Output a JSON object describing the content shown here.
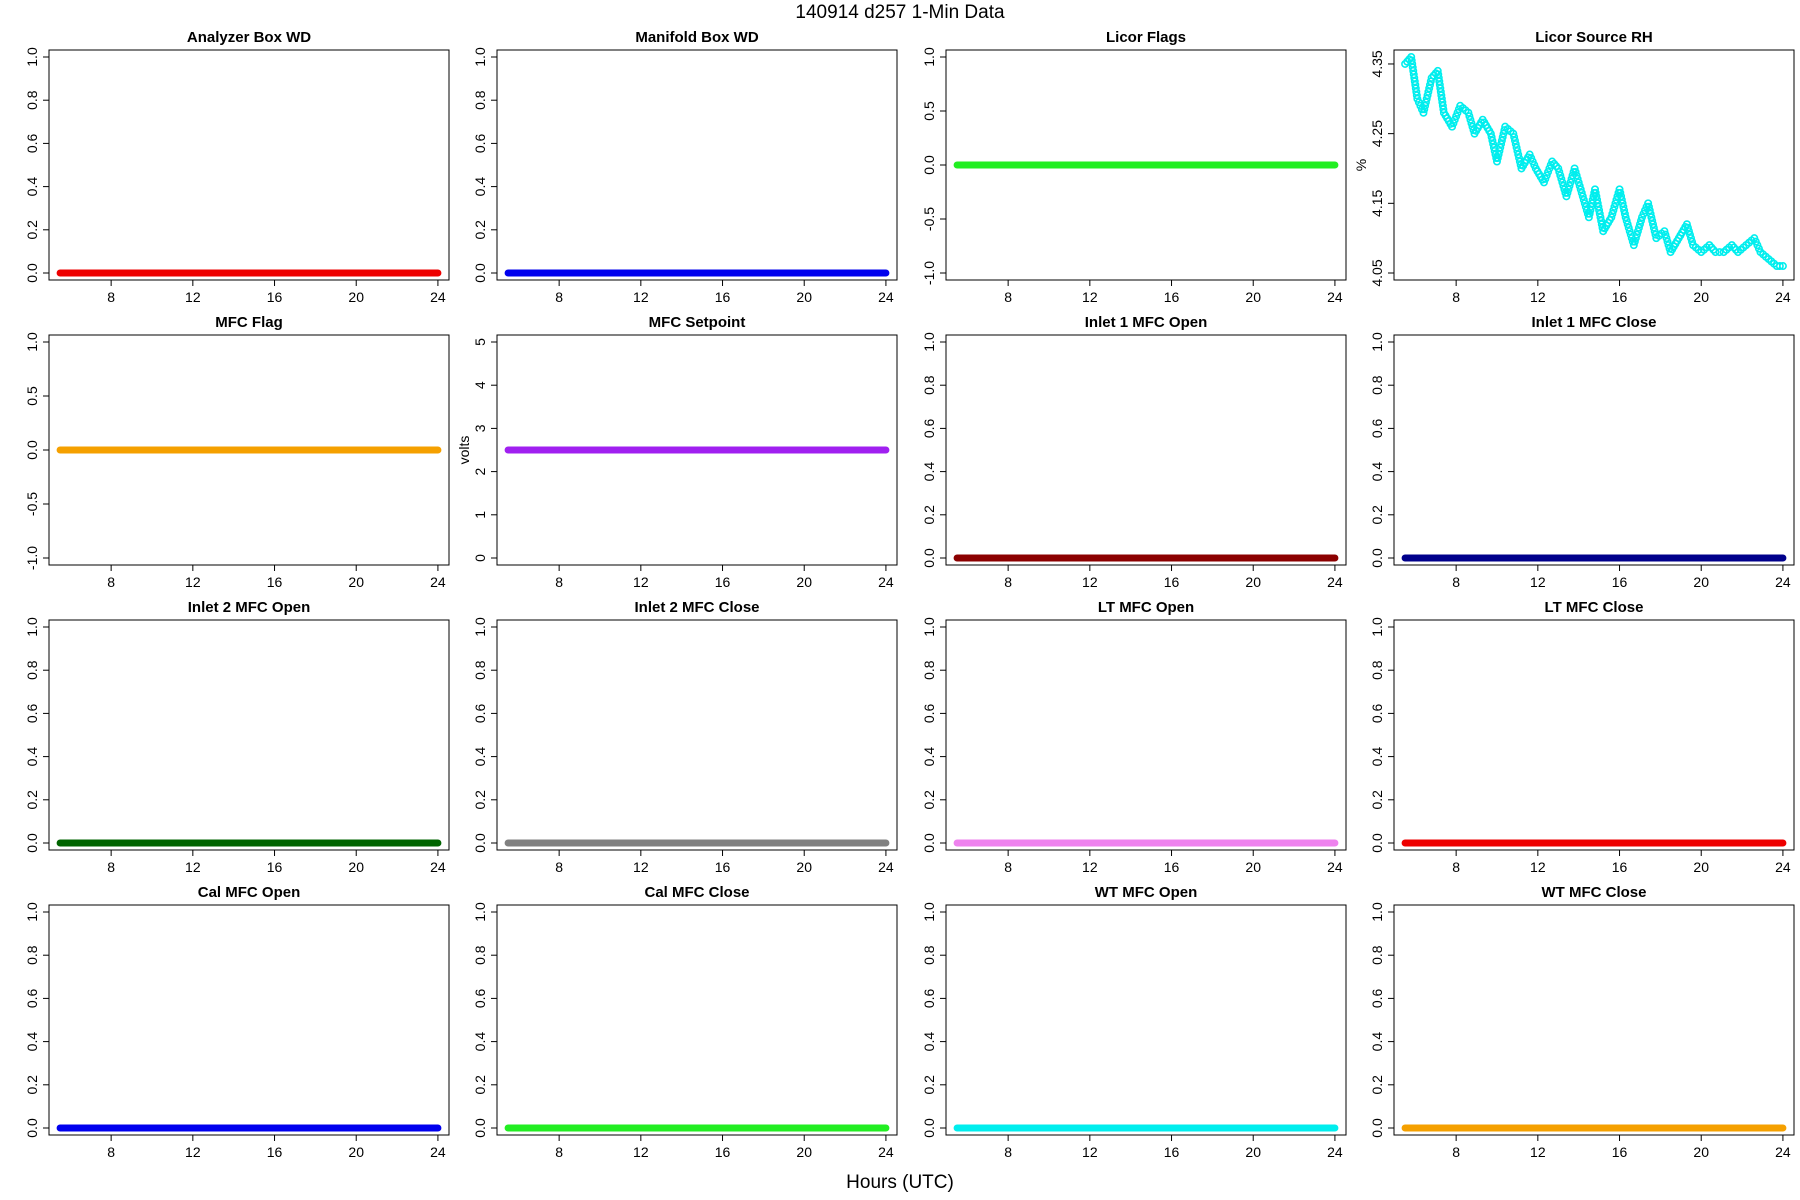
{
  "figure": {
    "title": "140914   d257   1-Min Data",
    "xlabel": "Hours (UTC)"
  },
  "chart_data": [
    {
      "type": "scatter",
      "title": "Analyzer Box WD",
      "ylabel": "",
      "color": "#ee0000",
      "xlim": [
        5.3,
        24.2
      ],
      "ylim": [
        0,
        1
      ],
      "xticks": [
        8,
        12,
        16,
        20,
        24
      ],
      "yticks": [
        "0.0",
        "0.2",
        "0.4",
        "0.6",
        "0.8",
        "1.0"
      ],
      "series": [
        {
          "x": [
            5.5,
            24
          ],
          "y": [
            0,
            0
          ]
        }
      ]
    },
    {
      "type": "scatter",
      "title": "Manifold Box WD",
      "ylabel": "",
      "color": "#0000ee",
      "xlim": [
        5.3,
        24.2
      ],
      "ylim": [
        0,
        1
      ],
      "xticks": [
        8,
        12,
        16,
        20,
        24
      ],
      "yticks": [
        "0.0",
        "0.2",
        "0.4",
        "0.6",
        "0.8",
        "1.0"
      ],
      "series": [
        {
          "x": [
            5.5,
            24
          ],
          "y": [
            0,
            0
          ]
        }
      ]
    },
    {
      "type": "scatter",
      "title": "Licor Flags",
      "ylabel": "",
      "color": "#22ee22",
      "xlim": [
        5.3,
        24.2
      ],
      "ylim": [
        -1,
        1
      ],
      "xticks": [
        8,
        12,
        16,
        20,
        24
      ],
      "yticks": [
        "-1.0",
        "-0.5",
        "0.0",
        "0.5",
        "1.0"
      ],
      "series": [
        {
          "x": [
            5.5,
            24
          ],
          "y": [
            0,
            0
          ]
        }
      ]
    },
    {
      "type": "scatter",
      "title": "Licor Source RH",
      "ylabel": "%",
      "color": "#00eeee",
      "marker": "open-circle",
      "xlim": [
        5.3,
        24.2
      ],
      "ylim": [
        4.05,
        4.36
      ],
      "xticks": [
        8,
        12,
        16,
        20,
        24
      ],
      "yticks": [
        "4.05",
        "4.15",
        "4.25",
        "4.35"
      ],
      "series": [
        {
          "x": [
            5.5,
            5.8,
            6.1,
            6.4,
            6.8,
            7.1,
            7.4,
            7.8,
            8.2,
            8.6,
            8.9,
            9.3,
            9.7,
            10.0,
            10.4,
            10.8,
            11.2,
            11.6,
            11.9,
            12.3,
            12.7,
            13.0,
            13.4,
            13.8,
            14.1,
            14.5,
            14.8,
            15.2,
            15.6,
            16.0,
            16.3,
            16.7,
            17.1,
            17.4,
            17.8,
            18.2,
            18.5,
            18.9,
            19.3,
            19.6,
            20.0,
            20.4,
            20.7,
            21.1,
            21.5,
            21.8,
            22.2,
            22.6,
            22.9,
            23.3,
            23.7,
            24.0
          ],
          "y": [
            4.35,
            4.36,
            4.3,
            4.28,
            4.33,
            4.34,
            4.28,
            4.26,
            4.29,
            4.28,
            4.25,
            4.27,
            4.25,
            4.21,
            4.26,
            4.25,
            4.2,
            4.22,
            4.2,
            4.18,
            4.21,
            4.2,
            4.16,
            4.2,
            4.17,
            4.13,
            4.17,
            4.11,
            4.13,
            4.17,
            4.13,
            4.09,
            4.13,
            4.15,
            4.1,
            4.11,
            4.08,
            4.1,
            4.12,
            4.09,
            4.08,
            4.09,
            4.08,
            4.08,
            4.09,
            4.08,
            4.09,
            4.1,
            4.08,
            4.07,
            4.06,
            4.06
          ]
        }
      ]
    },
    {
      "type": "scatter",
      "title": "MFC Flag",
      "ylabel": "",
      "color": "#f5a000",
      "xlim": [
        5.3,
        24.2
      ],
      "ylim": [
        -1,
        1
      ],
      "xticks": [
        8,
        12,
        16,
        20,
        24
      ],
      "yticks": [
        "-1.0",
        "-0.5",
        "0.0",
        "0.5",
        "1.0"
      ],
      "series": [
        {
          "x": [
            5.5,
            24
          ],
          "y": [
            0,
            0
          ]
        }
      ]
    },
    {
      "type": "scatter",
      "title": "MFC Setpoint",
      "ylabel": "volts",
      "color": "#a020f0",
      "xlim": [
        5.3,
        24.2
      ],
      "ylim": [
        0,
        5
      ],
      "xticks": [
        8,
        12,
        16,
        20,
        24
      ],
      "yticks": [
        "0",
        "1",
        "2",
        "3",
        "4",
        "5"
      ],
      "series": [
        {
          "x": [
            5.5,
            24
          ],
          "y": [
            2.5,
            2.5
          ]
        }
      ]
    },
    {
      "type": "scatter",
      "title": "Inlet 1 MFC Open",
      "ylabel": "",
      "color": "#8b0000",
      "xlim": [
        5.3,
        24.2
      ],
      "ylim": [
        0,
        1
      ],
      "xticks": [
        8,
        12,
        16,
        20,
        24
      ],
      "yticks": [
        "0.0",
        "0.2",
        "0.4",
        "0.6",
        "0.8",
        "1.0"
      ],
      "series": [
        {
          "x": [
            5.5,
            24
          ],
          "y": [
            0,
            0
          ]
        }
      ]
    },
    {
      "type": "scatter",
      "title": "Inlet 1 MFC Close",
      "ylabel": "",
      "color": "#00008b",
      "xlim": [
        5.3,
        24.2
      ],
      "ylim": [
        0,
        1
      ],
      "xticks": [
        8,
        12,
        16,
        20,
        24
      ],
      "yticks": [
        "0.0",
        "0.2",
        "0.4",
        "0.6",
        "0.8",
        "1.0"
      ],
      "series": [
        {
          "x": [
            5.5,
            24
          ],
          "y": [
            0,
            0
          ]
        }
      ]
    },
    {
      "type": "scatter",
      "title": "Inlet 2 MFC Open",
      "ylabel": "",
      "color": "#006400",
      "xlim": [
        5.3,
        24.2
      ],
      "ylim": [
        0,
        1
      ],
      "xticks": [
        8,
        12,
        16,
        20,
        24
      ],
      "yticks": [
        "0.0",
        "0.2",
        "0.4",
        "0.6",
        "0.8",
        "1.0"
      ],
      "series": [
        {
          "x": [
            5.5,
            24
          ],
          "y": [
            0,
            0
          ]
        }
      ]
    },
    {
      "type": "scatter",
      "title": "Inlet 2 MFC Close",
      "ylabel": "",
      "color": "#808080",
      "xlim": [
        5.3,
        24.2
      ],
      "ylim": [
        0,
        1
      ],
      "xticks": [
        8,
        12,
        16,
        20,
        24
      ],
      "yticks": [
        "0.0",
        "0.2",
        "0.4",
        "0.6",
        "0.8",
        "1.0"
      ],
      "series": [
        {
          "x": [
            5.5,
            24
          ],
          "y": [
            0,
            0
          ]
        }
      ]
    },
    {
      "type": "scatter",
      "title": "LT MFC Open",
      "ylabel": "",
      "color": "#ee82ee",
      "xlim": [
        5.3,
        24.2
      ],
      "ylim": [
        0,
        1
      ],
      "xticks": [
        8,
        12,
        16,
        20,
        24
      ],
      "yticks": [
        "0.0",
        "0.2",
        "0.4",
        "0.6",
        "0.8",
        "1.0"
      ],
      "series": [
        {
          "x": [
            5.5,
            24
          ],
          "y": [
            0,
            0
          ]
        }
      ]
    },
    {
      "type": "scatter",
      "title": "LT MFC Close",
      "ylabel": "",
      "color": "#ee0000",
      "xlim": [
        5.3,
        24.2
      ],
      "ylim": [
        0,
        1
      ],
      "xticks": [
        8,
        12,
        16,
        20,
        24
      ],
      "yticks": [
        "0.0",
        "0.2",
        "0.4",
        "0.6",
        "0.8",
        "1.0"
      ],
      "series": [
        {
          "x": [
            5.5,
            24
          ],
          "y": [
            0,
            0
          ]
        }
      ]
    },
    {
      "type": "scatter",
      "title": "Cal MFC Open",
      "ylabel": "",
      "color": "#0000ee",
      "xlim": [
        5.3,
        24.2
      ],
      "ylim": [
        0,
        1
      ],
      "xticks": [
        8,
        12,
        16,
        20,
        24
      ],
      "yticks": [
        "0.0",
        "0.2",
        "0.4",
        "0.6",
        "0.8",
        "1.0"
      ],
      "series": [
        {
          "x": [
            5.5,
            24
          ],
          "y": [
            0,
            0
          ]
        }
      ]
    },
    {
      "type": "scatter",
      "title": "Cal MFC Close",
      "ylabel": "",
      "color": "#22ee22",
      "xlim": [
        5.3,
        24.2
      ],
      "ylim": [
        0,
        1
      ],
      "xticks": [
        8,
        12,
        16,
        20,
        24
      ],
      "yticks": [
        "0.0",
        "0.2",
        "0.4",
        "0.6",
        "0.8",
        "1.0"
      ],
      "series": [
        {
          "x": [
            5.5,
            24
          ],
          "y": [
            0,
            0
          ]
        }
      ]
    },
    {
      "type": "scatter",
      "title": "WT MFC Open",
      "ylabel": "",
      "color": "#00eeee",
      "xlim": [
        5.3,
        24.2
      ],
      "ylim": [
        0,
        1
      ],
      "xticks": [
        8,
        12,
        16,
        20,
        24
      ],
      "yticks": [
        "0.0",
        "0.2",
        "0.4",
        "0.6",
        "0.8",
        "1.0"
      ],
      "series": [
        {
          "x": [
            5.5,
            24
          ],
          "y": [
            0,
            0
          ]
        }
      ]
    },
    {
      "type": "scatter",
      "title": "WT MFC Close",
      "ylabel": "",
      "color": "#f5a000",
      "xlim": [
        5.3,
        24.2
      ],
      "ylim": [
        0,
        1
      ],
      "xticks": [
        8,
        12,
        16,
        20,
        24
      ],
      "yticks": [
        "0.0",
        "0.2",
        "0.4",
        "0.6",
        "0.8",
        "1.0"
      ],
      "series": [
        {
          "x": [
            5.5,
            24
          ],
          "y": [
            0,
            0
          ]
        }
      ]
    }
  ]
}
